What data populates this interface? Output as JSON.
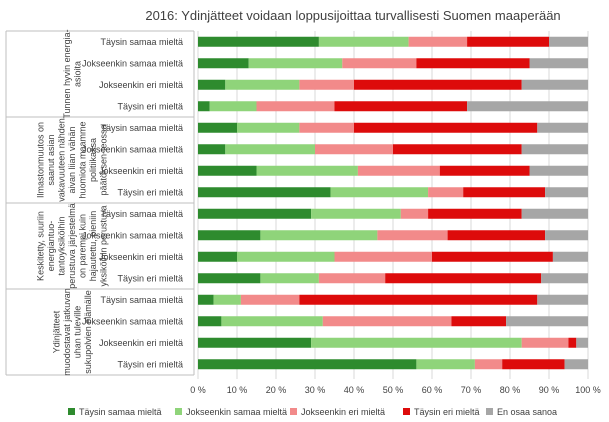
{
  "chart_data": {
    "type": "bar",
    "orientation": "horizontal",
    "stacked": true,
    "title": "2016: Ydinjätteet voidaan loppusijoittaa turvallisesti Suomen maaperään",
    "xlabel": "",
    "ylabel": "",
    "xlim": [
      0,
      100
    ],
    "x_tick_labels": [
      "0 %",
      "10 %",
      "20 %",
      "30 %",
      "40 %",
      "50 %",
      "60 %",
      "70 %",
      "80 %",
      "90 %",
      "100 %"
    ],
    "grid": true,
    "legend_position": "bottom",
    "groups": [
      {
        "label_lines": [
          "Tunnen hyvin energia-",
          "asioita"
        ],
        "categories": [
          "Täysin samaa mieltä",
          "Jokseenkin samaa mieltä",
          "Jokseenkin eri mieltä",
          "Täysin eri mieltä"
        ]
      },
      {
        "label_lines": [
          "Ilmastonmuutos on",
          "saanut asian",
          "vakavuuteen nähden",
          "aivan liian vähän",
          "huomiota maamme",
          "politiikassa",
          "päätöksen-teossa"
        ],
        "categories": [
          "Täysin samaa mieltä",
          "Jokseenkin samaa mieltä",
          "Jokseenkin eri mieltä",
          "Täysin eri mieltä"
        ]
      },
      {
        "label_lines": [
          "Keskitetty, suuriin",
          "energiantuo-",
          "tantoyksiköihin",
          "perustuva järjestelmä",
          "on parempi kuin",
          "hajautettu, pieniin",
          "yksiköihin perustuva"
        ],
        "categories": [
          "Täysin samaa mieltä",
          "Jokseenkin samaa mieltä",
          "Jokseenkin eri mieltä",
          "Täysin eri mieltä"
        ]
      },
      {
        "label_lines": [
          "Ydinjätteet",
          "muodostavat jatkuvan",
          "uhan tuleville",
          "sukupolvien elämälle"
        ],
        "categories": [
          "Täysin samaa mieltä",
          "Jokseenkin samaa mieltä",
          "Jokseenkin eri mieltä",
          "Täysin eri mieltä"
        ]
      }
    ],
    "series": [
      {
        "name": "Täysin samaa mieltä",
        "color": "#2e8b2e",
        "values": [
          31,
          13,
          7,
          3,
          10,
          7,
          15,
          34,
          29,
          16,
          10,
          16,
          4,
          6,
          29,
          56
        ]
      },
      {
        "name": "Jokseenkin samaa mieltä",
        "color": "#8fd47a",
        "values": [
          23,
          24,
          19,
          12,
          16,
          23,
          26,
          25,
          23,
          30,
          25,
          15,
          7,
          26,
          54,
          15
        ]
      },
      {
        "name": "Jokseenkin eri mieltä",
        "color": "#f28a8a",
        "values": [
          15,
          19,
          14,
          20,
          14,
          20,
          21,
          9,
          7,
          18,
          25,
          17,
          15,
          33,
          12,
          7
        ]
      },
      {
        "name": "Täysin eri mieltä",
        "color": "#dd0b0b",
        "values": [
          21,
          29,
          43,
          34,
          47,
          33,
          23,
          21,
          24,
          25,
          31,
          40,
          61,
          14,
          2,
          16
        ]
      },
      {
        "name": "En osaa sanoa",
        "color": "#a6a6a6",
        "values": [
          10,
          15,
          17,
          31,
          13,
          17,
          15,
          11,
          17,
          11,
          9,
          12,
          13,
          21,
          3,
          6
        ]
      }
    ]
  }
}
